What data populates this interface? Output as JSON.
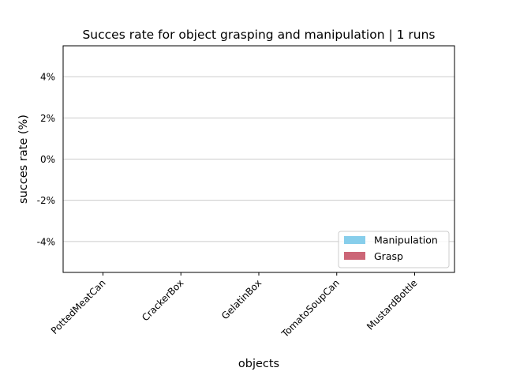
{
  "chart_data": {
    "type": "bar",
    "title": "Succes rate for object grasping and manipulation | 1 runs",
    "xlabel": "objects",
    "ylabel": "succes rate (%)",
    "categories": [
      "PottedMeatCan",
      "CrackerBox",
      "GelatinBox",
      "TomatoSoupCan",
      "MustardBottle"
    ],
    "series": [
      {
        "name": "Manipulation",
        "color": "#87ceeb",
        "values": [
          0,
          0,
          0,
          0,
          0
        ]
      },
      {
        "name": "Grasp",
        "color": "#cc6677",
        "values": [
          0,
          0,
          0,
          0,
          0
        ]
      }
    ],
    "ylim": [
      -5.5,
      5.5
    ],
    "yticks": [
      {
        "value": -4,
        "label": "-4%"
      },
      {
        "value": -2,
        "label": "-2%"
      },
      {
        "value": 0,
        "label": "0%"
      },
      {
        "value": 2,
        "label": "2%"
      },
      {
        "value": 4,
        "label": "4%"
      }
    ],
    "grid": "horizontal",
    "legend_position": "lower-right"
  }
}
